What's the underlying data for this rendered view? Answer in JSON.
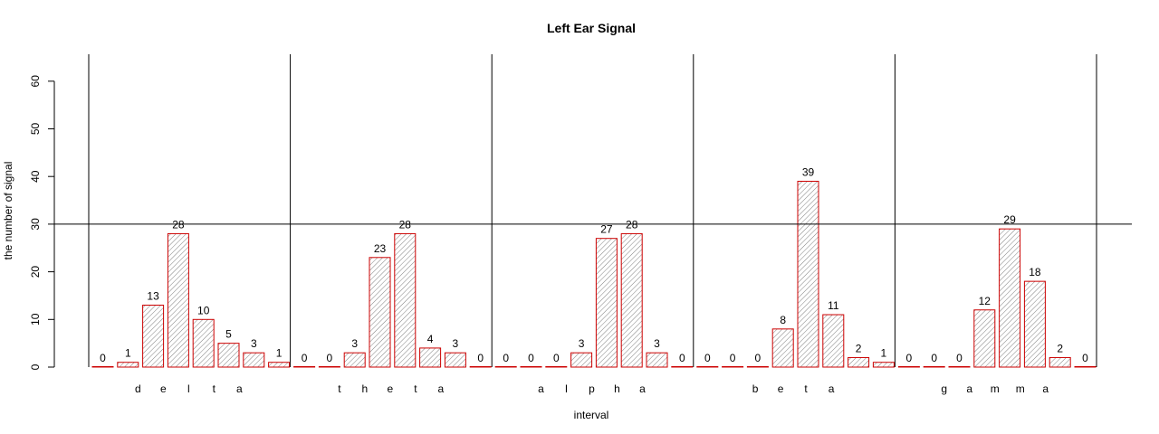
{
  "chart_data": {
    "type": "bar",
    "title": "Left Ear Signal",
    "xlabel": "interval",
    "ylabel": "the number of signal",
    "ylim": [
      0,
      65
    ],
    "yticks": [
      0,
      10,
      20,
      30,
      40,
      50,
      60
    ],
    "reference_line": 30,
    "colors": {
      "bar_border": "#cc0000",
      "hatch": "#808080",
      "axis": "#000000"
    },
    "groups": [
      {
        "letters": [
          "d",
          "e",
          "l",
          "t",
          "a"
        ],
        "values": [
          0,
          1,
          13,
          28,
          10,
          5,
          3,
          1
        ]
      },
      {
        "letters": [
          "t",
          "h",
          "e",
          "t",
          "a"
        ],
        "values": [
          0,
          0,
          3,
          23,
          28,
          4,
          3,
          0
        ]
      },
      {
        "letters": [
          "a",
          "l",
          "p",
          "h",
          "a"
        ],
        "values": [
          0,
          0,
          0,
          3,
          27,
          28,
          3,
          0
        ]
      },
      {
        "letters": [
          "b",
          "e",
          "t",
          "a"
        ],
        "values": [
          0,
          0,
          0,
          8,
          39,
          11,
          2,
          1
        ]
      },
      {
        "letters": [
          "g",
          "a",
          "m",
          "m",
          "a"
        ],
        "values": [
          0,
          0,
          0,
          12,
          29,
          18,
          2,
          0
        ]
      }
    ]
  }
}
